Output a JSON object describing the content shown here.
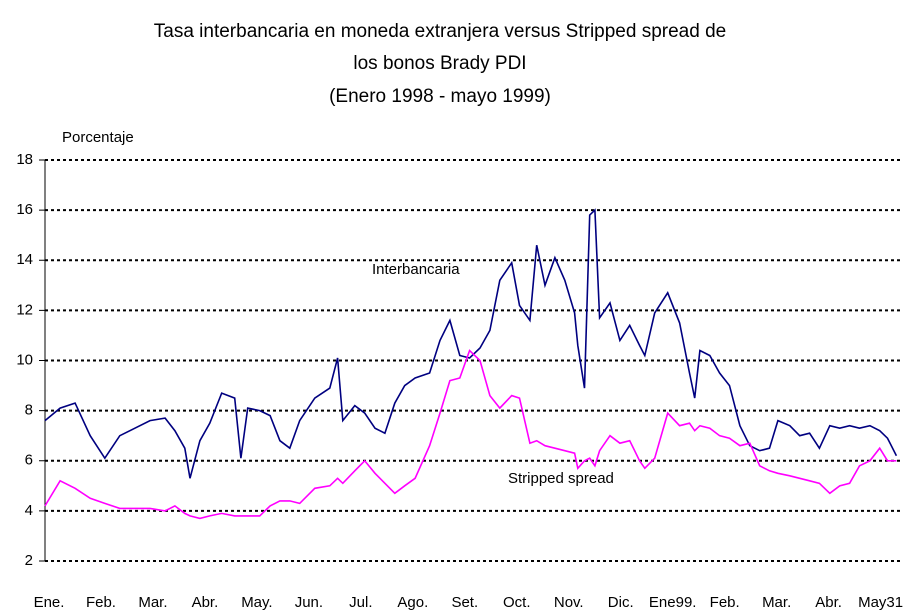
{
  "chart_data": {
    "type": "line",
    "title": [
      "Tasa interbancaria en moneda extranjera versus Stripped spread de",
      "los bonos Brady PDI"
    ],
    "subtitle": "(Enero 1998 - mayo 1999)",
    "y_label": "Porcentaje",
    "annotations": [
      "Interbancaria",
      "Stripped spread"
    ],
    "x": [
      0,
      0.29,
      0.58,
      0.87,
      1.15,
      1.44,
      1.73,
      2.02,
      2.31,
      2.5,
      2.69,
      2.79,
      2.98,
      3.17,
      3.4,
      3.65,
      3.77,
      3.9,
      4.13,
      4.33,
      4.52,
      4.71,
      4.9,
      5.19,
      5.48,
      5.63,
      5.73,
      5.96,
      6.15,
      6.35,
      6.54,
      6.73,
      6.92,
      7.12,
      7.4,
      7.6,
      7.79,
      7.98,
      8.17,
      8.37,
      8.56,
      8.75,
      8.98,
      9.13,
      9.33,
      9.46,
      9.62,
      9.81,
      10,
      10.19,
      10.25,
      10.38,
      10.48,
      10.58,
      10.67,
      10.87,
      11.06,
      11.25,
      11.44,
      11.54,
      11.73,
      11.98,
      12.21,
      12.4,
      12.5,
      12.6,
      12.79,
      12.98,
      13.17,
      13.37,
      13.56,
      13.75,
      13.94,
      14.1,
      14.33,
      14.52,
      14.71,
      14.9,
      15.1,
      15.29,
      15.48,
      15.67,
      15.87,
      16.06,
      16.21,
      16.38
    ],
    "series": [
      {
        "name": "Interbancaria",
        "color": "#000080",
        "values": [
          7.6,
          8.1,
          8.3,
          7.0,
          6.1,
          7.0,
          7.3,
          7.6,
          7.7,
          7.2,
          6.5,
          5.3,
          6.8,
          7.5,
          8.7,
          8.5,
          6.1,
          8.1,
          8.0,
          7.8,
          6.8,
          6.5,
          7.6,
          8.5,
          8.9,
          10.1,
          7.6,
          8.2,
          7.9,
          7.3,
          7.1,
          8.3,
          9.0,
          9.3,
          9.5,
          10.8,
          11.6,
          10.2,
          10.1,
          10.5,
          11.2,
          13.2,
          13.9,
          12.2,
          11.6,
          14.6,
          13.0,
          14.1,
          13.2,
          11.9,
          10.6,
          8.9,
          15.8,
          16.0,
          11.7,
          12.3,
          10.8,
          11.4,
          10.6,
          10.2,
          11.9,
          12.7,
          11.5,
          9.5,
          8.5,
          10.4,
          10.2,
          9.5,
          9.0,
          7.4,
          6.6,
          6.4,
          6.5,
          7.6,
          7.4,
          7.0,
          7.1,
          6.5,
          7.4,
          7.3,
          7.4,
          7.3,
          7.4,
          7.2,
          6.9,
          6.2
        ]
      },
      {
        "name": "Stripped spread",
        "color": "#ff00ff",
        "values": [
          4.2,
          5.2,
          4.9,
          4.5,
          4.3,
          4.1,
          4.1,
          4.1,
          4.0,
          4.2,
          3.9,
          3.8,
          3.7,
          3.8,
          3.9,
          3.8,
          3.8,
          3.8,
          3.8,
          4.2,
          4.4,
          4.4,
          4.3,
          4.9,
          5.0,
          5.3,
          5.1,
          5.6,
          6.0,
          5.5,
          5.1,
          4.7,
          5.0,
          5.3,
          6.6,
          7.9,
          9.2,
          9.3,
          10.4,
          10.0,
          8.6,
          8.1,
          8.6,
          8.5,
          6.7,
          6.8,
          6.6,
          6.5,
          6.4,
          6.3,
          5.7,
          6.0,
          6.1,
          5.8,
          6.4,
          7.0,
          6.7,
          6.8,
          6.0,
          5.7,
          6.1,
          7.9,
          7.4,
          7.5,
          7.2,
          7.4,
          7.3,
          7.0,
          6.9,
          6.6,
          6.7,
          5.8,
          5.6,
          5.5,
          5.4,
          5.3,
          5.2,
          5.1,
          4.7,
          5.0,
          5.1,
          5.8,
          6.0,
          6.5,
          6.0,
          6.0
        ]
      }
    ],
    "xlim": [
      0,
      16.45
    ],
    "xticks": [
      {
        "value": 0,
        "label": "Ene."
      },
      {
        "value": 1,
        "label": "Feb."
      },
      {
        "value": 2,
        "label": "Mar."
      },
      {
        "value": 3,
        "label": "Abr."
      },
      {
        "value": 4,
        "label": "May."
      },
      {
        "value": 5,
        "label": "Jun."
      },
      {
        "value": 6,
        "label": "Jul."
      },
      {
        "value": 7,
        "label": "Ago."
      },
      {
        "value": 8,
        "label": "Set."
      },
      {
        "value": 9,
        "label": "Oct."
      },
      {
        "value": 10,
        "label": "Nov."
      },
      {
        "value": 11,
        "label": "Dic."
      },
      {
        "value": 12,
        "label": "Ene99."
      },
      {
        "value": 13,
        "label": "Feb."
      },
      {
        "value": 14,
        "label": "Mar."
      },
      {
        "value": 15,
        "label": "Abr."
      },
      {
        "value": 16,
        "label": "May31"
      }
    ],
    "ylim": [
      2,
      18
    ],
    "yticks": [
      2,
      4,
      6,
      8,
      10,
      12,
      14,
      16,
      18
    ],
    "grid": true
  }
}
